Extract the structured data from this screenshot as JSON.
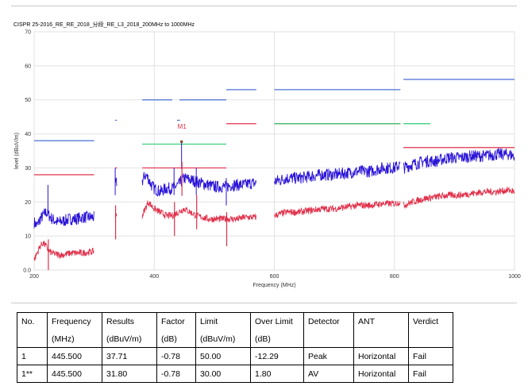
{
  "chart_data": {
    "type": "line",
    "title": "CISPR 25-2016_RE_RE_2018_分段_RE_L3_2018_200MHz to 1000MHz",
    "xlabel": "Frequency (MHz)",
    "ylabel": "level (dBuV/m)",
    "xlim": [
      200,
      1000
    ],
    "ylim": [
      0,
      70
    ],
    "x_ticks": [
      "200",
      "400",
      "600",
      "800",
      "1000"
    ],
    "y_ticks": [
      "0.0",
      "10",
      "20",
      "30",
      "40",
      "50",
      "60",
      "70"
    ],
    "grid": true,
    "colors": {
      "peak": "#2a14d6",
      "average": "#e0304a",
      "peak_limit": "#4a6fd6",
      "avg_limit": "#e0304a",
      "qp_limit": "#2ecc71",
      "grid": "#e2e2e2"
    },
    "bands": [
      {
        "x": [
          200,
          300
        ]
      },
      {
        "x": [
          335,
          338
        ]
      },
      {
        "x": [
          380,
          570
        ]
      },
      {
        "x": [
          600,
          810
        ]
      },
      {
        "x": [
          815,
          1000
        ]
      }
    ],
    "series": [
      {
        "type": "peak",
        "points": [
          [
            200,
            14
          ],
          [
            205,
            13
          ],
          [
            210,
            15
          ],
          [
            215,
            16
          ],
          [
            220,
            17
          ],
          [
            225,
            16
          ],
          [
            230,
            15
          ],
          [
            240,
            14
          ],
          [
            250,
            14.5
          ],
          [
            260,
            15
          ],
          [
            270,
            15
          ],
          [
            280,
            15.5
          ],
          [
            300,
            15.5
          ],
          [
            335,
            25
          ],
          [
            338,
            26
          ],
          [
            380,
            26
          ],
          [
            385,
            28
          ],
          [
            390,
            27
          ],
          [
            395,
            25
          ],
          [
            400,
            24
          ],
          [
            410,
            23
          ],
          [
            420,
            24
          ],
          [
            430,
            24
          ],
          [
            440,
            25
          ],
          [
            450,
            27
          ],
          [
            460,
            26.5
          ],
          [
            470,
            26
          ],
          [
            480,
            25.5
          ],
          [
            490,
            25
          ],
          [
            500,
            24.5
          ],
          [
            510,
            24.5
          ],
          [
            520,
            24.5
          ],
          [
            530,
            25
          ],
          [
            540,
            25
          ],
          [
            550,
            25
          ],
          [
            560,
            25.5
          ],
          [
            570,
            25.5
          ],
          [
            600,
            26
          ],
          [
            620,
            27
          ],
          [
            640,
            27
          ],
          [
            660,
            27.5
          ],
          [
            680,
            28
          ],
          [
            700,
            28
          ],
          [
            720,
            28.5
          ],
          [
            740,
            29
          ],
          [
            760,
            29
          ],
          [
            780,
            30
          ],
          [
            800,
            30
          ],
          [
            810,
            31
          ],
          [
            815,
            30
          ],
          [
            830,
            31
          ],
          [
            850,
            32
          ],
          [
            870,
            32
          ],
          [
            890,
            33
          ],
          [
            910,
            33
          ],
          [
            930,
            33.5
          ],
          [
            950,
            33.5
          ],
          [
            970,
            34
          ],
          [
            990,
            34
          ],
          [
            1000,
            33.5
          ]
        ]
      },
      {
        "type": "average",
        "points": [
          [
            200,
            3
          ],
          [
            205,
            5
          ],
          [
            210,
            7
          ],
          [
            215,
            8
          ],
          [
            220,
            7
          ],
          [
            225,
            5.5
          ],
          [
            230,
            5
          ],
          [
            240,
            4.5
          ],
          [
            250,
            4.5
          ],
          [
            260,
            5
          ],
          [
            270,
            5
          ],
          [
            280,
            5
          ],
          [
            300,
            5.5
          ],
          [
            335,
            16
          ],
          [
            338,
            16
          ],
          [
            380,
            16
          ],
          [
            385,
            18
          ],
          [
            390,
            20
          ],
          [
            395,
            19
          ],
          [
            400,
            18
          ],
          [
            410,
            17
          ],
          [
            420,
            16
          ],
          [
            430,
            16
          ],
          [
            440,
            17
          ],
          [
            450,
            18
          ],
          [
            460,
            17
          ],
          [
            470,
            16
          ],
          [
            480,
            15.5
          ],
          [
            490,
            15
          ],
          [
            500,
            15
          ],
          [
            510,
            15
          ],
          [
            520,
            15
          ],
          [
            530,
            15
          ],
          [
            540,
            15
          ],
          [
            550,
            15.5
          ],
          [
            560,
            15.5
          ],
          [
            570,
            15.5
          ],
          [
            600,
            16
          ],
          [
            620,
            17
          ],
          [
            640,
            17
          ],
          [
            660,
            17.5
          ],
          [
            680,
            18
          ],
          [
            700,
            18
          ],
          [
            720,
            18.5
          ],
          [
            740,
            19
          ],
          [
            760,
            19
          ],
          [
            780,
            19.5
          ],
          [
            800,
            19.5
          ],
          [
            810,
            20
          ],
          [
            815,
            19
          ],
          [
            830,
            20
          ],
          [
            850,
            21
          ],
          [
            870,
            21.5
          ],
          [
            890,
            22
          ],
          [
            910,
            22
          ],
          [
            930,
            22.5
          ],
          [
            950,
            23
          ],
          [
            970,
            23
          ],
          [
            990,
            23.5
          ],
          [
            1000,
            23
          ]
        ]
      }
    ],
    "spikes": [
      {
        "x": 223,
        "peak": 25,
        "average": 9
      },
      {
        "x": 335,
        "peak": 30,
        "average": 19
      },
      {
        "x": 433,
        "peak": 30,
        "average": 20
      },
      {
        "x": 445.5,
        "peak": 37.71,
        "average": 31.8
      },
      {
        "x": 470,
        "peak": 30,
        "average": 22
      },
      {
        "x": 520,
        "peak": 27,
        "average": 17
      }
    ],
    "limits": [
      {
        "type": "peak",
        "segments": [
          [
            [
              200,
              38
            ],
            [
              300,
              38
            ]
          ],
          [
            [
              335,
              44
            ],
            [
              338,
              44
            ]
          ],
          [
            [
              380,
              50
            ],
            [
              430,
              50
            ]
          ],
          [
            [
              442,
              50
            ],
            [
              520,
              50
            ]
          ],
          [
            [
              520,
              53
            ],
            [
              570,
              53
            ]
          ],
          [
            [
              600,
              53
            ],
            [
              810,
              53
            ]
          ],
          [
            [
              815,
              56
            ],
            [
              1000,
              56
            ]
          ],
          [
            [
              438,
              44
            ],
            [
              443,
              44
            ]
          ]
        ]
      },
      {
        "type": "average",
        "segments": [
          [
            [
              200,
              28
            ],
            [
              300,
              28
            ]
          ],
          [
            [
              335,
              30
            ],
            [
              338,
              30
            ]
          ],
          [
            [
              380,
              30
            ],
            [
              520,
              30
            ]
          ],
          [
            [
              520,
              43
            ],
            [
              570,
              43
            ]
          ],
          [
            [
              600,
              43
            ],
            [
              810,
              43
            ]
          ],
          [
            [
              815,
              36
            ],
            [
              1000,
              36
            ]
          ]
        ]
      },
      {
        "type": "quasi-peak",
        "segments": [
          [
            [
              380,
              37
            ],
            [
              520,
              37
            ]
          ],
          [
            [
              600,
              43
            ],
            [
              810,
              43
            ]
          ],
          [
            [
              815,
              43
            ],
            [
              860,
              43
            ]
          ]
        ]
      }
    ],
    "markers": [
      {
        "label": "M1",
        "x": 445.5,
        "y": 37.71
      }
    ]
  },
  "results_table": {
    "header_top": [
      "No.",
      "Frequency",
      "Results",
      "Factor",
      "Limit",
      "Over Limit",
      "Detector",
      "ANT",
      "Verdict"
    ],
    "header_bottom": [
      "",
      "(MHz)",
      "(dBuV/m)",
      "(dB)",
      "(dBuV/m)",
      "(dB)",
      "",
      "",
      ""
    ],
    "rows": [
      [
        "1",
        "445.500",
        "37.71",
        "-0.78",
        "50.00",
        "-12.29",
        "Peak",
        "Horizontal",
        "Fail"
      ],
      [
        "1**",
        "445.500",
        "31.80",
        "-0.78",
        "30.00",
        "1.80",
        "AV",
        "Horizontal",
        "Fail"
      ]
    ]
  }
}
